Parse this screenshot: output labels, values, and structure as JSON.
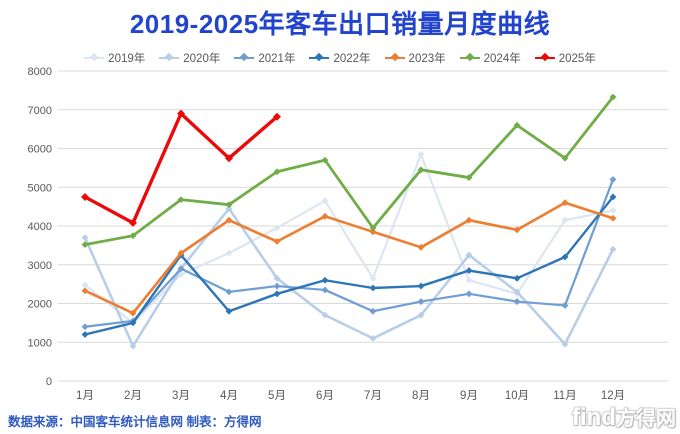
{
  "title": "2019-2025年客车出口销量月度曲线",
  "title_color": "#2244cc",
  "source_note": "数据来源：中国客车统计信息网  制表：方得网",
  "source_note_color": "#2f5bc0",
  "watermark": {
    "latin": "find",
    "cn": "方得网"
  },
  "axis": {
    "label_color": "#595959",
    "gridline_color": "#d9d9d9"
  },
  "chart_data": {
    "type": "line",
    "title": "2019-2025年客车出口销量月度曲线",
    "xlabel": "",
    "ylabel": "",
    "categories": [
      "1月",
      "2月",
      "3月",
      "4月",
      "5月",
      "6月",
      "7月",
      "8月",
      "9月",
      "10月",
      "11月",
      "12月"
    ],
    "y_ticks": [
      0,
      1000,
      2000,
      3000,
      4000,
      5000,
      6000,
      7000,
      8000
    ],
    "ylim": [
      0,
      8000
    ],
    "grid": "horizontal",
    "legend_position": "top",
    "series": [
      {
        "name": "2019年",
        "color": "#dce6f2",
        "width": 2.2,
        "values": [
          2480,
          1500,
          2750,
          3300,
          3950,
          4650,
          2650,
          5850,
          2600,
          2250,
          4150,
          4400
        ]
      },
      {
        "name": "2020年",
        "color": "#b7cde8",
        "width": 2.6,
        "values": [
          3700,
          900,
          2900,
          4450,
          2650,
          1700,
          1100,
          1700,
          3250,
          2300,
          950,
          3400
        ]
      },
      {
        "name": "2021年",
        "color": "#6f9ed4",
        "width": 2.2,
        "values": [
          1400,
          1550,
          2900,
          2300,
          2450,
          2350,
          1800,
          2050,
          2250,
          2050,
          1950,
          5200
        ]
      },
      {
        "name": "2022年",
        "color": "#2e75b6",
        "width": 2.4,
        "values": [
          1200,
          1500,
          3250,
          1800,
          2250,
          2600,
          2400,
          2450,
          2850,
          2650,
          3200,
          4750
        ]
      },
      {
        "name": "2023年",
        "color": "#ed7d31",
        "width": 2.6,
        "values": [
          2330,
          1750,
          3300,
          4150,
          3600,
          4250,
          3850,
          3450,
          4150,
          3900,
          4600,
          4200
        ]
      },
      {
        "name": "2024年",
        "color": "#70ad47",
        "width": 2.8,
        "values": [
          3520,
          3750,
          4680,
          4550,
          5400,
          5700,
          3950,
          5450,
          5250,
          6600,
          5750,
          7330
        ]
      },
      {
        "name": "2025年",
        "color": "#eb0a0a",
        "width": 3.4,
        "values": [
          4750,
          4080,
          6900,
          5750,
          6820,
          null,
          null,
          null,
          null,
          null,
          null,
          null
        ]
      }
    ]
  }
}
